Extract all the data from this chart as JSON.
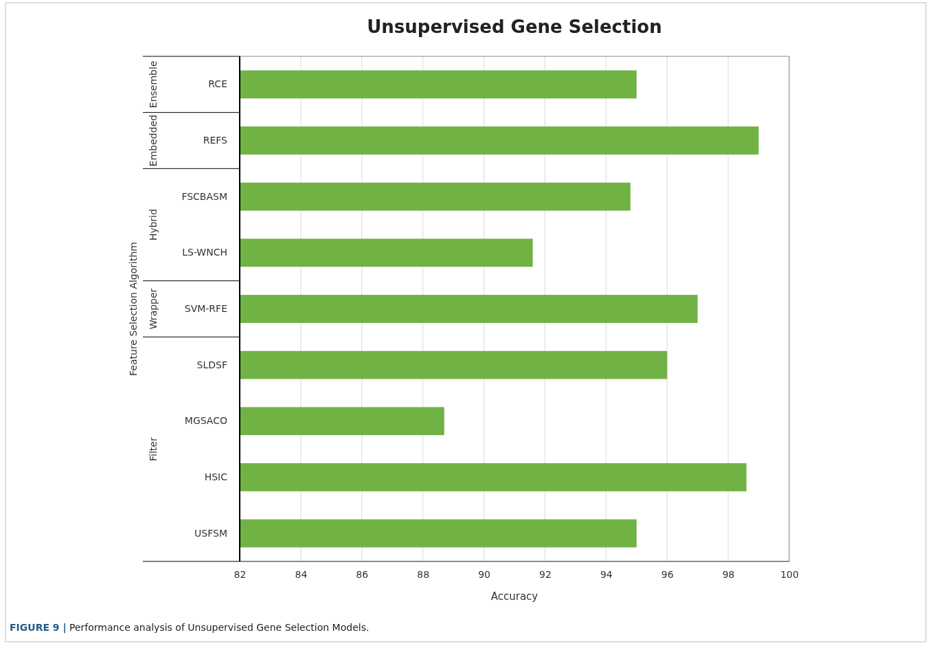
{
  "chart_data": {
    "type": "bar",
    "orientation": "horizontal",
    "title": "Unsupervised Gene Selection",
    "xlabel": "Accuracy",
    "ylabel": "Feature Selection Algorithm",
    "categories": [
      "RCE",
      "REFS",
      "FSCBASM",
      "LS-WNCH",
      "SVM-RFE",
      "SLDSF",
      "MGSACO",
      "HSIC",
      "USFSM"
    ],
    "values": [
      95.0,
      99.0,
      94.8,
      91.6,
      97.0,
      96.0,
      88.7,
      98.6,
      95.0
    ],
    "color": "#70b244",
    "xlim": [
      82,
      100
    ],
    "xticks": [
      82,
      84,
      86,
      88,
      90,
      92,
      94,
      96,
      98,
      100
    ],
    "grid": "x",
    "annotations": [
      "Ensemble",
      "Embedded",
      "Hybrid",
      "Wrapper",
      "Filter",
      "FIGURE 9 | Performance analysis of Unsupervised Gene Selection Models."
    ]
  }
}
